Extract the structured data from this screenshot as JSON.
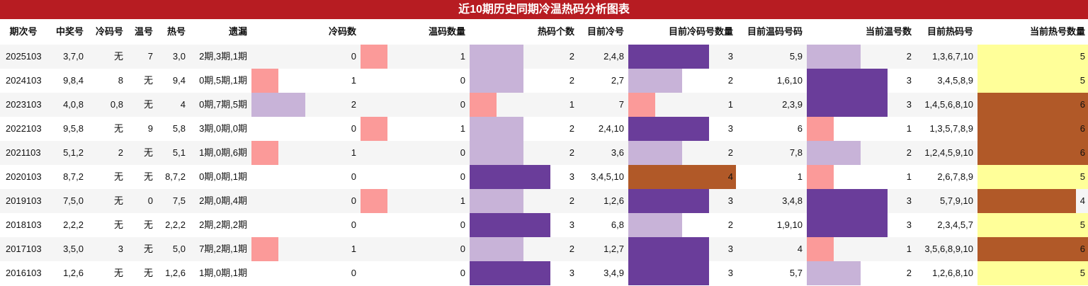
{
  "title": "近10期历史同期冷温热码分析图表",
  "colors": {
    "title_bg": "#b71c22",
    "level_colors": {
      "0": "#ffffff",
      "1": "#fb9a99",
      "2": "#c8b3d8",
      "3": "#6a3d9a",
      "4": "#b15928",
      "5": "#ffff99",
      "6": "#b15928"
    }
  },
  "columns": [
    "期次号",
    "中奖号",
    "冷码号",
    "温号",
    "热号",
    "遗漏",
    "冷码数",
    "温码数量",
    "热码个数",
    "目前冷号",
    "目前冷码号数量",
    "目前温码号码",
    "当前温号数",
    "目前热码号",
    "当前热号数量"
  ],
  "chart_data": {
    "type": "table",
    "title": "近10期历史同期冷温热码分析图表",
    "rows": [
      {
        "period": "2025103",
        "winning": "3,7,0",
        "cold": "无",
        "warm": "7",
        "hot": "3,0",
        "missing": "2期,3期,1期",
        "cold_count": 0,
        "warm_count": 1,
        "hot_count": 2,
        "cur_cold": "2,4,8",
        "cur_cold_count": 3,
        "cur_warm": "5,9",
        "cur_warm_count": 2,
        "cur_hot": "1,3,6,7,10",
        "cur_hot_count": 5
      },
      {
        "period": "2024103",
        "winning": "9,8,4",
        "cold": "8",
        "warm": "无",
        "hot": "9,4",
        "missing": "0期,5期,1期",
        "cold_count": 1,
        "warm_count": 0,
        "hot_count": 2,
        "cur_cold": "2,7",
        "cur_cold_count": 2,
        "cur_warm": "1,6,10",
        "cur_warm_count": 3,
        "cur_hot": "3,4,5,8,9",
        "cur_hot_count": 5
      },
      {
        "period": "2023103",
        "winning": "4,0,8",
        "cold": "0,8",
        "warm": "无",
        "hot": "4",
        "missing": "0期,7期,5期",
        "cold_count": 2,
        "warm_count": 0,
        "hot_count": 1,
        "cur_cold": "7",
        "cur_cold_count": 1,
        "cur_warm": "2,3,9",
        "cur_warm_count": 3,
        "cur_hot": "1,4,5,6,8,10",
        "cur_hot_count": 6
      },
      {
        "period": "2022103",
        "winning": "9,5,8",
        "cold": "无",
        "warm": "9",
        "hot": "5,8",
        "missing": "3期,0期,0期",
        "cold_count": 0,
        "warm_count": 1,
        "hot_count": 2,
        "cur_cold": "2,4,10",
        "cur_cold_count": 3,
        "cur_warm": "6",
        "cur_warm_count": 1,
        "cur_hot": "1,3,5,7,8,9",
        "cur_hot_count": 6
      },
      {
        "period": "2021103",
        "winning": "5,1,2",
        "cold": "2",
        "warm": "无",
        "hot": "5,1",
        "missing": "1期,0期,6期",
        "cold_count": 1,
        "warm_count": 0,
        "hot_count": 2,
        "cur_cold": "3,6",
        "cur_cold_count": 2,
        "cur_warm": "7,8",
        "cur_warm_count": 2,
        "cur_hot": "1,2,4,5,9,10",
        "cur_hot_count": 6
      },
      {
        "period": "2020103",
        "winning": "8,7,2",
        "cold": "无",
        "warm": "无",
        "hot": "8,7,2",
        "missing": "0期,0期,1期",
        "cold_count": 0,
        "warm_count": 0,
        "hot_count": 3,
        "cur_cold": "3,4,5,10",
        "cur_cold_count": 4,
        "cur_warm": "1",
        "cur_warm_count": 1,
        "cur_hot": "2,6,7,8,9",
        "cur_hot_count": 5
      },
      {
        "period": "2019103",
        "winning": "7,5,0",
        "cold": "无",
        "warm": "0",
        "hot": "7,5",
        "missing": "2期,0期,4期",
        "cold_count": 0,
        "warm_count": 1,
        "hot_count": 2,
        "cur_cold": "1,2,6",
        "cur_cold_count": 3,
        "cur_warm": "3,4,8",
        "cur_warm_count": 3,
        "cur_hot": "5,7,9,10",
        "cur_hot_count": 4
      },
      {
        "period": "2018103",
        "winning": "2,2,2",
        "cold": "无",
        "warm": "无",
        "hot": "2,2,2",
        "missing": "2期,2期,2期",
        "cold_count": 0,
        "warm_count": 0,
        "hot_count": 3,
        "cur_cold": "6,8",
        "cur_cold_count": 2,
        "cur_warm": "1,9,10",
        "cur_warm_count": 3,
        "cur_hot": "2,3,4,5,7",
        "cur_hot_count": 5
      },
      {
        "period": "2017103",
        "winning": "3,5,0",
        "cold": "3",
        "warm": "无",
        "hot": "5,0",
        "missing": "7期,2期,1期",
        "cold_count": 1,
        "warm_count": 0,
        "hot_count": 2,
        "cur_cold": "1,2,7",
        "cur_cold_count": 3,
        "cur_warm": "4",
        "cur_warm_count": 1,
        "cur_hot": "3,5,6,8,9,10",
        "cur_hot_count": 6
      },
      {
        "period": "2016103",
        "winning": "1,2,6",
        "cold": "无",
        "warm": "无",
        "hot": "1,2,6",
        "missing": "1期,0期,1期",
        "cold_count": 0,
        "warm_count": 0,
        "hot_count": 3,
        "cur_cold": "3,4,9",
        "cur_cold_count": 3,
        "cur_warm": "5,7",
        "cur_warm_count": 2,
        "cur_hot": "1,2,6,8,10",
        "cur_hot_count": 5
      }
    ]
  }
}
